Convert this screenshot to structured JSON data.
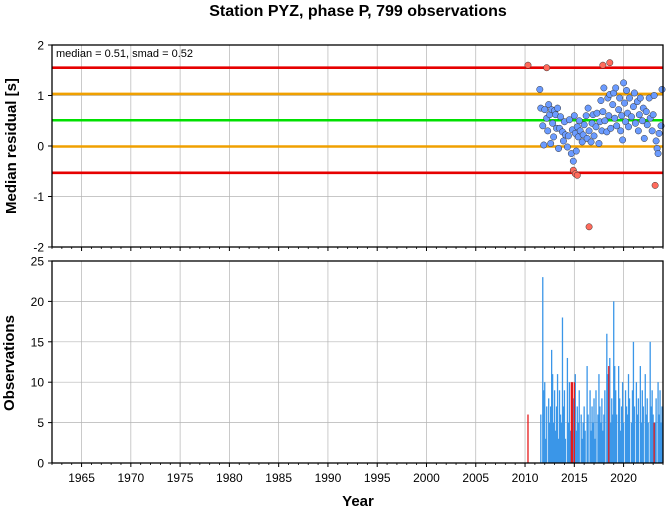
{
  "chart_data": {
    "title": "Station PYZ, phase P, 799 observations",
    "xlabel": "Year",
    "xlim": [
      1962,
      2024
    ],
    "xticks": [
      1965,
      1970,
      1975,
      1980,
      1985,
      1990,
      1995,
      2000,
      2005,
      2010,
      2015,
      2020
    ],
    "grid": true,
    "panels": [
      {
        "type": "scatter",
        "ylabel": "Median residual [s]",
        "ylim": [
          -2,
          2
        ],
        "yticks": [
          -2,
          -1,
          0,
          1,
          2
        ],
        "annotation": "median = 0.51, smad = 0.52",
        "reference_lines": [
          {
            "value": 1.55,
            "color": "#e60000"
          },
          {
            "value": 1.03,
            "color": "#f0a000"
          },
          {
            "value": 0.51,
            "color": "#00e000"
          },
          {
            "value": -0.01,
            "color": "#f0a000"
          },
          {
            "value": -0.53,
            "color": "#e60000"
          }
        ],
        "series": [
          {
            "color": "#6b9bff",
            "points": [
              [
                2011.5,
                1.12
              ],
              [
                2011.6,
                0.75
              ],
              [
                2011.8,
                0.4
              ],
              [
                2011.9,
                0.02
              ],
              [
                2012.0,
                0.72
              ],
              [
                2012.2,
                0.55
              ],
              [
                2012.3,
                0.3
              ],
              [
                2012.4,
                0.82
              ],
              [
                2012.5,
                0.62
              ],
              [
                2012.6,
                0.05
              ],
              [
                2012.7,
                0.72
              ],
              [
                2012.8,
                0.45
              ],
              [
                2012.9,
                0.18
              ],
              [
                2013.0,
                0.7
              ],
              [
                2013.1,
                0.62
              ],
              [
                2013.2,
                0.35
              ],
              [
                2013.3,
                0.75
              ],
              [
                2013.4,
                -0.05
              ],
              [
                2013.5,
                0.35
              ],
              [
                2013.6,
                0.58
              ],
              [
                2013.8,
                0.28
              ],
              [
                2013.9,
                0.1
              ],
              [
                2014.0,
                0.48
              ],
              [
                2014.1,
                0.22
              ],
              [
                2014.3,
                -0.02
              ],
              [
                2014.4,
                0.2
              ],
              [
                2014.5,
                0.52
              ],
              [
                2014.7,
                -0.15
              ],
              [
                2014.8,
                0.32
              ],
              [
                2014.9,
                -0.3
              ],
              [
                2015.0,
                0.6
              ],
              [
                2015.1,
                0.25
              ],
              [
                2015.2,
                -0.1
              ],
              [
                2015.3,
                0.38
              ],
              [
                2015.4,
                0.18
              ],
              [
                2015.5,
                0.5
              ],
              [
                2015.6,
                0.3
              ],
              [
                2015.8,
                0.08
              ],
              [
                2015.9,
                0.22
              ],
              [
                2016.0,
                0.42
              ],
              [
                2016.2,
                0.6
              ],
              [
                2016.3,
                0.15
              ],
              [
                2016.4,
                0.75
              ],
              [
                2016.5,
                0.3
              ],
              [
                2016.7,
                0.08
              ],
              [
                2016.8,
                0.45
              ],
              [
                2016.9,
                0.62
              ],
              [
                2017.0,
                0.2
              ],
              [
                2017.2,
                0.38
              ],
              [
                2017.3,
                0.65
              ],
              [
                2017.5,
                0.05
              ],
              [
                2017.6,
                0.48
              ],
              [
                2017.7,
                0.9
              ],
              [
                2017.8,
                0.3
              ],
              [
                2017.9,
                0.68
              ],
              [
                2018.0,
                1.15
              ],
              [
                2018.1,
                0.5
              ],
              [
                2018.3,
                0.28
              ],
              [
                2018.4,
                0.95
              ],
              [
                2018.5,
                0.6
              ],
              [
                2018.6,
                1.02
              ],
              [
                2018.7,
                0.35
              ],
              [
                2018.9,
                0.82
              ],
              [
                2019.0,
                1.05
              ],
              [
                2019.1,
                0.55
              ],
              [
                2019.2,
                1.15
              ],
              [
                2019.3,
                0.4
              ],
              [
                2019.5,
                0.72
              ],
              [
                2019.6,
                0.95
              ],
              [
                2019.7,
                0.3
              ],
              [
                2019.8,
                0.6
              ],
              [
                2019.9,
                0.12
              ],
              [
                2020.0,
                1.25
              ],
              [
                2020.1,
                0.85
              ],
              [
                2020.2,
                0.48
              ],
              [
                2020.3,
                1.1
              ],
              [
                2020.4,
                0.65
              ],
              [
                2020.5,
                0.38
              ],
              [
                2020.6,
                0.95
              ],
              [
                2020.8,
                0.58
              ],
              [
                2021.0,
                0.78
              ],
              [
                2021.1,
                1.05
              ],
              [
                2021.2,
                0.45
              ],
              [
                2021.4,
                0.88
              ],
              [
                2021.5,
                0.3
              ],
              [
                2021.6,
                0.62
              ],
              [
                2021.7,
                0.95
              ],
              [
                2021.9,
                0.5
              ],
              [
                2022.0,
                0.75
              ],
              [
                2022.1,
                0.15
              ],
              [
                2022.3,
                0.68
              ],
              [
                2022.4,
                0.42
              ],
              [
                2022.6,
                0.95
              ],
              [
                2022.7,
                0.55
              ],
              [
                2022.9,
                0.3
              ],
              [
                2023.0,
                0.62
              ],
              [
                2023.1,
                1.0
              ],
              [
                2023.3,
                0.1
              ],
              [
                2023.4,
                -0.05
              ],
              [
                2023.5,
                -0.15
              ],
              [
                2023.6,
                0.25
              ],
              [
                2023.8,
                0.4
              ],
              [
                2023.9,
                1.12
              ]
            ]
          },
          {
            "color": "#ff6b5c",
            "points": [
              [
                2010.3,
                1.6
              ],
              [
                2012.2,
                1.55
              ],
              [
                2014.9,
                -0.48
              ],
              [
                2015.1,
                -0.55
              ],
              [
                2015.3,
                -0.58
              ],
              [
                2016.5,
                -1.6
              ],
              [
                2017.9,
                1.6
              ],
              [
                2018.6,
                1.65
              ],
              [
                2023.2,
                -0.78
              ]
            ]
          }
        ]
      },
      {
        "type": "bar",
        "ylabel": "Observations",
        "ylim": [
          0,
          25
        ],
        "yticks": [
          0,
          5,
          10,
          15,
          20,
          25
        ],
        "series": [
          {
            "color": "#3a96e8",
            "bars": [
              [
                2011.6,
                6
              ],
              [
                2011.8,
                23
              ],
              [
                2011.9,
                9
              ],
              [
                2012.0,
                10
              ],
              [
                2012.1,
                3
              ],
              [
                2012.2,
                7
              ],
              [
                2012.4,
                8
              ],
              [
                2012.5,
                5
              ],
              [
                2012.6,
                7
              ],
              [
                2012.7,
                14
              ],
              [
                2012.8,
                11
              ],
              [
                2012.9,
                5
              ],
              [
                2013.0,
                9
              ],
              [
                2013.1,
                4
              ],
              [
                2013.2,
                7
              ],
              [
                2013.3,
                11
              ],
              [
                2013.4,
                3
              ],
              [
                2013.5,
                9
              ],
              [
                2013.6,
                6
              ],
              [
                2013.7,
                5
              ],
              [
                2013.8,
                18
              ],
              [
                2013.9,
                7
              ],
              [
                2014.0,
                9
              ],
              [
                2014.1,
                3
              ],
              [
                2014.3,
                13
              ],
              [
                2014.4,
                5
              ],
              [
                2014.5,
                10
              ],
              [
                2014.6,
                4
              ],
              [
                2014.8,
                6
              ],
              [
                2014.9,
                8
              ],
              [
                2015.1,
                11
              ],
              [
                2015.2,
                4
              ],
              [
                2015.3,
                7
              ],
              [
                2015.4,
                5
              ],
              [
                2015.5,
                9
              ],
              [
                2015.7,
                6
              ],
              [
                2015.8,
                3
              ],
              [
                2015.9,
                5
              ],
              [
                2016.0,
                7
              ],
              [
                2016.1,
                4
              ],
              [
                2016.3,
                12
              ],
              [
                2016.4,
                6
              ],
              [
                2016.6,
                9
              ],
              [
                2016.7,
                4
              ],
              [
                2016.8,
                7
              ],
              [
                2016.9,
                5
              ],
              [
                2017.0,
                8
              ],
              [
                2017.1,
                3
              ],
              [
                2017.2,
                9
              ],
              [
                2017.4,
                6
              ],
              [
                2017.5,
                11
              ],
              [
                2017.6,
                7
              ],
              [
                2017.7,
                5
              ],
              [
                2017.8,
                8
              ],
              [
                2017.9,
                4
              ],
              [
                2018.0,
                6
              ],
              [
                2018.1,
                9
              ],
              [
                2018.3,
                16
              ],
              [
                2018.4,
                11
              ],
              [
                2018.5,
                7
              ],
              [
                2018.6,
                13
              ],
              [
                2018.7,
                5
              ],
              [
                2018.8,
                8
              ],
              [
                2018.9,
                6
              ],
              [
                2019.0,
                20
              ],
              [
                2019.1,
                12
              ],
              [
                2019.2,
                9
              ],
              [
                2019.3,
                6
              ],
              [
                2019.5,
                12
              ],
              [
                2019.6,
                8
              ],
              [
                2019.7,
                4
              ],
              [
                2019.8,
                7
              ],
              [
                2019.9,
                10
              ],
              [
                2020.0,
                5
              ],
              [
                2020.2,
                9
              ],
              [
                2020.3,
                7
              ],
              [
                2020.4,
                6
              ],
              [
                2020.5,
                11
              ],
              [
                2020.6,
                8
              ],
              [
                2020.8,
                5
              ],
              [
                2020.9,
                9
              ],
              [
                2021.0,
                15
              ],
              [
                2021.1,
                7
              ],
              [
                2021.3,
                10
              ],
              [
                2021.4,
                6
              ],
              [
                2021.5,
                8
              ],
              [
                2021.7,
                12
              ],
              [
                2021.8,
                5
              ],
              [
                2021.9,
                9
              ],
              [
                2022.0,
                7
              ],
              [
                2022.2,
                11
              ],
              [
                2022.3,
                6
              ],
              [
                2022.4,
                8
              ],
              [
                2022.5,
                5
              ],
              [
                2022.7,
                15
              ],
              [
                2022.8,
                7
              ],
              [
                2022.9,
                9
              ],
              [
                2023.0,
                6
              ],
              [
                2023.2,
                5
              ],
              [
                2023.3,
                8
              ],
              [
                2023.5,
                10
              ],
              [
                2023.6,
                6
              ],
              [
                2023.7,
                9
              ],
              [
                2023.8,
                5
              ],
              [
                2023.9,
                7
              ]
            ]
          },
          {
            "color": "#e61919",
            "bars": [
              [
                2010.3,
                6
              ],
              [
                2014.7,
                10
              ],
              [
                2014.8,
                10
              ],
              [
                2015.0,
                10
              ],
              [
                2018.5,
                12
              ],
              [
                2023.1,
                5
              ]
            ]
          }
        ]
      }
    ]
  }
}
